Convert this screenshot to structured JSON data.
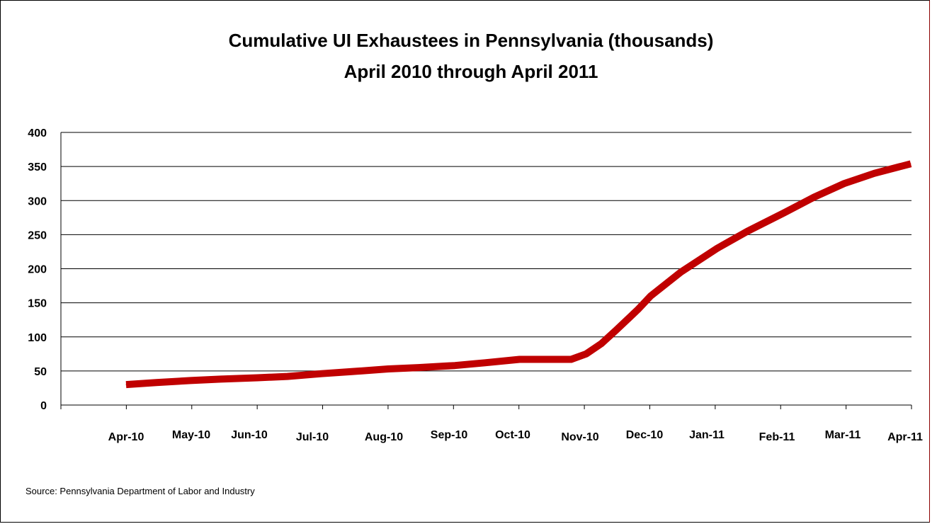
{
  "chart_data": {
    "type": "line",
    "title": "Cumulative UI Exhaustees in Pennsylvania (thousands)",
    "subtitle": "April 2010 through April 2011",
    "xlabel": "",
    "ylabel": "",
    "ylim": [
      0,
      400
    ],
    "yticks": [
      0,
      50,
      100,
      150,
      200,
      250,
      300,
      350,
      400
    ],
    "grid": "horizontal",
    "legend": "none",
    "line_color": "#c00000",
    "x_tick_labels": [
      "Apr-10",
      "May-10",
      "Jun-10",
      "Jul-10",
      "Aug-10",
      "Sep-10",
      "Oct-10",
      "Nov-10",
      "Dec-10",
      "Jan-11",
      "Feb-11",
      "Mar-11",
      "Apr-11"
    ],
    "series": [
      {
        "name": "",
        "x": [
          "2010-04-01",
          "2010-04-15",
          "2010-05-01",
          "2010-05-15",
          "2010-06-01",
          "2010-06-15",
          "2010-07-01",
          "2010-07-15",
          "2010-08-01",
          "2010-08-15",
          "2010-09-01",
          "2010-09-15",
          "2010-10-01",
          "2010-10-15",
          "2010-10-25",
          "2010-11-01",
          "2010-11-08",
          "2010-11-15",
          "2010-11-25",
          "2010-12-01",
          "2010-12-15",
          "2011-01-01",
          "2011-01-15",
          "2011-02-01",
          "2011-02-15",
          "2011-03-01",
          "2011-03-15",
          "2011-04-01"
        ],
        "values": [
          30,
          33,
          36,
          38,
          40,
          42,
          46,
          49,
          53,
          55,
          58,
          62,
          67,
          67,
          67,
          75,
          90,
          110,
          140,
          160,
          195,
          230,
          255,
          282,
          305,
          325,
          340,
          354
        ]
      }
    ]
  },
  "footer": {
    "source": "Source: Pennsylvania Department of Labor and Industry"
  }
}
